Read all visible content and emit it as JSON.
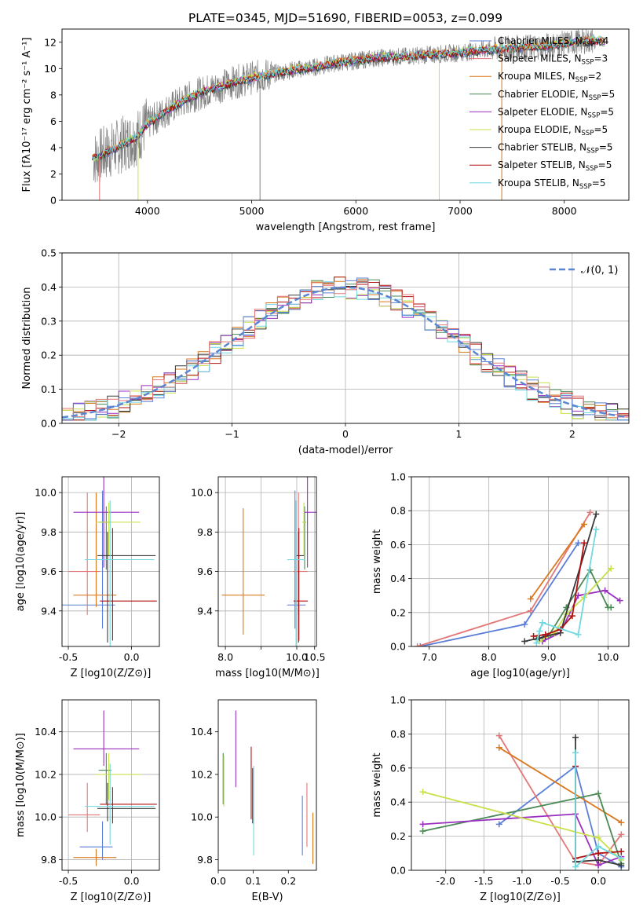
{
  "figure_title": "PLATE=0345, MJD=51690, FIBERID=0053, z=0.099",
  "colors": {
    "Chabrier MILES": "#5b7fd6",
    "Salpeter MILES": "#e37777",
    "Kroupa MILES": "#d9781f",
    "Chabrier ELODIE": "#4a8a55",
    "Salpeter ELODIE": "#9b2fbf",
    "Kroupa ELODIE": "#c9e04a",
    "Chabrier STELIB": "#3a3a3a",
    "Salpeter STELIB": "#b01010",
    "Kroupa STELIB": "#6fd8e0",
    "data": "#808080",
    "gaussian": "#5b86d1",
    "grid": "#b0b0b0"
  },
  "chart_data": [
    {
      "id": "spectrum",
      "type": "line",
      "xlabel": "wavelength [Angstrom, rest frame]",
      "ylabel": "Flux [fλ10⁻¹⁷ erg cm⁻² s⁻¹ A⁻¹]",
      "xlim": [
        3180,
        8620
      ],
      "ylim": [
        0,
        13
      ],
      "xticks": [
        4000,
        5000,
        6000,
        7000,
        8000
      ],
      "yticks": [
        0,
        2,
        4,
        6,
        8,
        10,
        12
      ],
      "grid": false,
      "legend_position": "upper right",
      "legend": [
        "Chabrier MILES, N_SSP=4",
        "Salpeter MILES, N_SSP=3",
        "Kroupa MILES, N_SSP=2",
        "Chabrier ELODIE, N_SSP=5",
        "Salpeter ELODIE, N_SSP=5",
        "Kroupa ELODIE, N_SSP=5",
        "Chabrier STELIB, N_SSP=5",
        "Salpeter STELIB, N_SSP=5",
        "Kroupa STELIB, N_SSP=5"
      ],
      "continuum": {
        "x": [
          3500,
          3700,
          3900,
          4000,
          4200,
          4400,
          4600,
          4800,
          5000,
          5200,
          5400,
          5600,
          5800,
          6000,
          6200,
          6400,
          6600,
          6800,
          7000,
          7200,
          7400,
          7600,
          7800,
          8000,
          8200
        ],
        "y": [
          3.2,
          4.0,
          4.8,
          5.8,
          6.9,
          7.8,
          8.4,
          8.9,
          9.3,
          9.6,
          9.9,
          10.1,
          10.4,
          10.6,
          10.8,
          10.9,
          11.0,
          11.1,
          11.2,
          11.4,
          11.5,
          11.6,
          11.7,
          11.9,
          12.1
        ]
      },
      "dips": [
        {
          "x": 3540,
          "y": 0.0
        },
        {
          "x": 3910,
          "y": 0.0
        },
        {
          "x": 5080,
          "y": 0.0
        },
        {
          "x": 6800,
          "y": 0.0
        },
        {
          "x": 7400,
          "y": 0.0
        }
      ]
    },
    {
      "id": "residuals",
      "type": "bar",
      "xlabel": "(data-model)/error",
      "ylabel": "Normed distribution",
      "xlim": [
        -2.5,
        2.5
      ],
      "ylim": [
        0,
        0.5
      ],
      "xticks": [
        -2,
        -1,
        0,
        1,
        2
      ],
      "yticks": [
        0.0,
        0.1,
        0.2,
        0.3,
        0.4,
        0.5
      ],
      "grid": true,
      "legend_position": "upper right",
      "legend": [
        "𝒩(0, 1)"
      ],
      "bin_width": 0.1,
      "gaussian": {
        "mu": 0,
        "sigma": 1
      }
    },
    {
      "id": "age-vs-Z",
      "type": "scatter",
      "xlabel": "Z [log10(Z/Z⊙)]",
      "ylabel": "age [log10(age/yr)]",
      "xlim": [
        -0.55,
        0.22
      ],
      "ylim": [
        9.22,
        10.08
      ],
      "xticks": [
        -0.5,
        0.0
      ],
      "yticks": [
        9.4,
        9.6,
        9.8,
        10.0
      ],
      "grid": true,
      "points": [
        {
          "model": "Chabrier MILES",
          "x": -0.23,
          "y": 9.43,
          "xerr": [
            0.4,
            0.1
          ],
          "yerr": [
            0.12,
            0.58
          ]
        },
        {
          "model": "Salpeter MILES",
          "x": -0.35,
          "y": 9.6,
          "xerr": [
            0.15,
            0.1
          ],
          "yerr": [
            0.22,
            0.4
          ]
        },
        {
          "model": "Kroupa MILES",
          "x": -0.28,
          "y": 9.48,
          "xerr": [
            0.18,
            0.16
          ],
          "yerr": [
            0.06,
            0.52
          ]
        },
        {
          "model": "Chabrier ELODIE",
          "x": -0.2,
          "y": 9.85,
          "xerr": [
            0.06,
            0.04
          ],
          "yerr": [
            0.24,
            0.08
          ]
        },
        {
          "model": "Salpeter ELODIE",
          "x": -0.22,
          "y": 9.9,
          "xerr": [
            0.24,
            0.28
          ],
          "yerr": [
            0.28,
            0.22
          ]
        },
        {
          "model": "Kroupa ELODIE",
          "x": -0.18,
          "y": 9.85,
          "xerr": [
            0.1,
            0.25
          ],
          "yerr": [
            0.17,
            0.1
          ]
        },
        {
          "model": "Chabrier STELIB",
          "x": -0.19,
          "y": 9.68,
          "xerr": [
            0.08,
            0.38
          ],
          "yerr": [
            0.44,
            0.12
          ]
        },
        {
          "model": "Salpeter STELIB",
          "x": -0.15,
          "y": 9.45,
          "xerr": [
            0.1,
            0.35
          ],
          "yerr": [
            0.2,
            0.37
          ]
        },
        {
          "model": "Kroupa STELIB",
          "x": -0.17,
          "y": 9.66,
          "xerr": [
            0.2,
            0.35
          ],
          "yerr": [
            0.46,
            0.3
          ]
        }
      ]
    },
    {
      "id": "age-vs-mass",
      "type": "scatter",
      "xlabel": "mass [log10(M/M⊙)]",
      "ylabel": "",
      "xlim": [
        7.8,
        10.55
      ],
      "ylim": [
        9.22,
        10.08
      ],
      "xticks": [
        8.0,
        9.0,
        10.0,
        10.5
      ],
      "tick_labels": [
        "8.0",
        "",
        "10.0",
        "10.5"
      ],
      "yticks": [
        9.4,
        9.6,
        9.8,
        10.0
      ],
      "grid": true,
      "points": [
        {
          "model": "Chabrier MILES",
          "x": 9.95,
          "y": 9.43,
          "xerr": [
            0.22,
            0.3
          ],
          "yerr": [
            0.12,
            0.58
          ]
        },
        {
          "model": "Salpeter MILES",
          "x": 10.05,
          "y": 9.6,
          "xerr": [
            0.15,
            0.25
          ],
          "yerr": [
            0.22,
            0.4
          ]
        },
        {
          "model": "Kroupa MILES",
          "x": 8.5,
          "y": 9.48,
          "xerr": [
            0.6,
            0.6
          ],
          "yerr": [
            0.2,
            0.44
          ]
        },
        {
          "model": "Chabrier ELODIE",
          "x": 10.22,
          "y": 9.85,
          "xerr": [
            0.04,
            0.04
          ],
          "yerr": [
            0.24,
            0.08
          ]
        },
        {
          "model": "Salpeter ELODIE",
          "x": 10.3,
          "y": 9.9,
          "xerr": [
            0.1,
            0.25
          ],
          "yerr": [
            0.28,
            0.22
          ]
        },
        {
          "model": "Kroupa ELODIE",
          "x": 10.2,
          "y": 9.85,
          "xerr": [
            0.05,
            0.05
          ],
          "yerr": [
            0.17,
            0.1
          ]
        },
        {
          "model": "Chabrier STELIB",
          "x": 10.05,
          "y": 9.68,
          "xerr": [
            0.07,
            0.15
          ],
          "yerr": [
            0.44,
            0.12
          ]
        },
        {
          "model": "Salpeter STELIB",
          "x": 10.06,
          "y": 9.45,
          "xerr": [
            0.15,
            0.25
          ],
          "yerr": [
            0.2,
            0.37
          ]
        },
        {
          "model": "Kroupa STELIB",
          "x": 9.98,
          "y": 9.66,
          "xerr": [
            0.25,
            0.25
          ],
          "yerr": [
            0.46,
            0.3
          ]
        }
      ]
    },
    {
      "id": "massweight-vs-age",
      "type": "line",
      "xlabel": "age [log10(age/yr)]",
      "ylabel": "mass weight",
      "xlim": [
        6.7,
        10.35
      ],
      "ylim": [
        0,
        1.0
      ],
      "xticks": [
        7,
        8,
        9,
        10
      ],
      "yticks": [
        0.0,
        0.2,
        0.4,
        0.6,
        0.8,
        1.0
      ],
      "grid": true,
      "series": [
        {
          "model": "Chabrier MILES",
          "x": [
            6.85,
            8.6,
            9.5
          ],
          "y": [
            0.0,
            0.13,
            0.61
          ]
        },
        {
          "model": "Salpeter MILES",
          "x": [
            6.8,
            8.7,
            9.7
          ],
          "y": [
            0.0,
            0.21,
            0.79
          ]
        },
        {
          "model": "Kroupa MILES",
          "x": [
            8.7,
            9.6
          ],
          "y": [
            0.28,
            0.72
          ]
        },
        {
          "model": "Chabrier ELODIE",
          "x": [
            8.8,
            9.0,
            9.3,
            9.7,
            10.0,
            10.05
          ],
          "y": [
            0.04,
            0.06,
            0.23,
            0.45,
            0.23,
            0.23
          ]
        },
        {
          "model": "Salpeter ELODIE",
          "x": [
            8.9,
            9.2,
            9.5,
            9.95,
            10.2
          ],
          "y": [
            0.03,
            0.08,
            0.3,
            0.33,
            0.27
          ]
        },
        {
          "model": "Kroupa ELODIE",
          "x": [
            8.85,
            9.1,
            9.3,
            9.6,
            10.05
          ],
          "y": [
            0.03,
            0.08,
            0.19,
            0.29,
            0.46
          ]
        },
        {
          "model": "Chabrier STELIB",
          "x": [
            8.6,
            8.85,
            8.95,
            9.2,
            9.8
          ],
          "y": [
            0.03,
            0.05,
            0.06,
            0.08,
            0.78
          ]
        },
        {
          "model": "Salpeter STELIB",
          "x": [
            8.75,
            8.95,
            9.2,
            9.4,
            9.6
          ],
          "y": [
            0.06,
            0.07,
            0.1,
            0.18,
            0.61
          ]
        },
        {
          "model": "Kroupa STELIB",
          "x": [
            8.8,
            8.85,
            8.9,
            9.5,
            9.8
          ],
          "y": [
            0.02,
            0.09,
            0.14,
            0.07,
            0.69
          ]
        }
      ]
    },
    {
      "id": "mass-vs-Z",
      "type": "scatter",
      "xlabel": "Z [log10(Z/Z⊙)]",
      "ylabel": "mass [log10(M/M⊙)]",
      "xlim": [
        -0.55,
        0.22
      ],
      "ylim": [
        9.75,
        10.55
      ],
      "xticks": [
        -0.5,
        0.0
      ],
      "yticks": [
        9.8,
        10.0,
        10.2,
        10.4
      ],
      "grid": true,
      "points": [
        {
          "model": "Chabrier MILES",
          "x": -0.23,
          "y": 9.86,
          "xerr": [
            0.18,
            0.08
          ],
          "yerr": [
            0.06,
            0.12
          ]
        },
        {
          "model": "Salpeter MILES",
          "x": -0.35,
          "y": 10.01,
          "xerr": [
            0.15,
            0.1
          ],
          "yerr": [
            0.08,
            0.15
          ]
        },
        {
          "model": "Kroupa MILES",
          "x": -0.28,
          "y": 9.81,
          "xerr": [
            0.18,
            0.16
          ],
          "yerr": [
            0.04,
            0.04
          ]
        },
        {
          "model": "Chabrier ELODIE",
          "x": -0.2,
          "y": 10.22,
          "xerr": [
            0.06,
            0.04
          ],
          "yerr": [
            0.16,
            0.08
          ]
        },
        {
          "model": "Salpeter ELODIE",
          "x": -0.22,
          "y": 10.32,
          "xerr": [
            0.24,
            0.28
          ],
          "yerr": [
            0.08,
            0.18
          ]
        },
        {
          "model": "Kroupa ELODIE",
          "x": -0.18,
          "y": 10.2,
          "xerr": [
            0.1,
            0.25
          ],
          "yerr": [
            0.12,
            0.1
          ]
        },
        {
          "model": "Chabrier STELIB",
          "x": -0.19,
          "y": 10.04,
          "xerr": [
            0.08,
            0.38
          ],
          "yerr": [
            0.06,
            0.12
          ]
        },
        {
          "model": "Salpeter STELIB",
          "x": -0.15,
          "y": 10.06,
          "xerr": [
            0.1,
            0.35
          ],
          "yerr": [
            0.09,
            0.08
          ]
        },
        {
          "model": "Kroupa STELIB",
          "x": -0.17,
          "y": 10.05,
          "xerr": [
            0.2,
            0.35
          ],
          "yerr": [
            0.18,
            0.2
          ]
        }
      ]
    },
    {
      "id": "mass-vs-EBV",
      "type": "scatter",
      "xlabel": "E(B-V)",
      "ylabel": "",
      "xlim": [
        0.0,
        0.28
      ],
      "ylim": [
        9.75,
        10.55
      ],
      "xticks": [
        0.0,
        0.1,
        0.2
      ],
      "yticks": [
        9.8,
        10.0,
        10.2,
        10.4
      ],
      "grid": false,
      "points": [
        {
          "model": "Chabrier MILES",
          "x": 0.24,
          "y": 9.96,
          "xerr": [
            0,
            0
          ],
          "yerr": [
            0.14,
            0.14
          ]
        },
        {
          "model": "Salpeter MILES",
          "x": 0.253,
          "y": 10.02,
          "xerr": [
            0,
            0
          ],
          "yerr": [
            0.16,
            0.14
          ]
        },
        {
          "model": "Kroupa MILES",
          "x": 0.27,
          "y": 9.9,
          "xerr": [
            0,
            0
          ],
          "yerr": [
            0.12,
            0.12
          ]
        },
        {
          "model": "Chabrier ELODIE",
          "x": 0.014,
          "y": 10.18,
          "xerr": [
            0,
            0
          ],
          "yerr": [
            0.12,
            0.12
          ]
        },
        {
          "model": "Salpeter ELODIE",
          "x": 0.05,
          "y": 10.32,
          "xerr": [
            0,
            0
          ],
          "yerr": [
            0.18,
            0.18
          ]
        },
        {
          "model": "Kroupa ELODIE",
          "x": 0.016,
          "y": 10.17,
          "xerr": [
            0,
            0
          ],
          "yerr": [
            0.12,
            0.12
          ]
        },
        {
          "model": "Chabrier STELIB",
          "x": 0.098,
          "y": 10.05,
          "xerr": [
            0,
            0
          ],
          "yerr": [
            0.08,
            0.18
          ]
        },
        {
          "model": "Salpeter STELIB",
          "x": 0.094,
          "y": 10.16,
          "xerr": [
            0,
            0
          ],
          "yerr": [
            0.17,
            0.17
          ]
        },
        {
          "model": "Kroupa STELIB",
          "x": 0.101,
          "y": 10.02,
          "xerr": [
            0,
            0
          ],
          "yerr": [
            0.2,
            0.22
          ]
        }
      ]
    },
    {
      "id": "massweight-vs-Z",
      "type": "line",
      "xlabel": "Z [log10(Z/Z⊙)]",
      "ylabel": "mass weight",
      "xlim": [
        -2.45,
        0.4
      ],
      "ylim": [
        0,
        1.0
      ],
      "xticks": [
        -2.0,
        -1.5,
        -1.0,
        -0.5,
        0.0
      ],
      "yticks": [
        0.0,
        0.2,
        0.4,
        0.6,
        0.8,
        1.0
      ],
      "grid": true,
      "series": [
        {
          "model": "Chabrier MILES",
          "x": [
            -1.3,
            -0.3,
            0.0,
            0.3
          ],
          "y": [
            0.27,
            0.61,
            0.1,
            0.02
          ]
        },
        {
          "model": "Salpeter MILES",
          "x": [
            -1.3,
            -0.3,
            0.0,
            0.3
          ],
          "y": [
            0.79,
            0.05,
            0.03,
            0.21
          ]
        },
        {
          "model": "Kroupa MILES",
          "x": [
            -1.3,
            0.3
          ],
          "y": [
            0.72,
            0.28
          ]
        },
        {
          "model": "Chabrier ELODIE",
          "x": [
            -2.3,
            0.0,
            0.3
          ],
          "y": [
            0.23,
            0.45,
            0.04
          ]
        },
        {
          "model": "Salpeter ELODIE",
          "x": [
            -2.3,
            -0.3,
            0.0,
            0.3
          ],
          "y": [
            0.27,
            0.33,
            0.03,
            0.08
          ]
        },
        {
          "model": "Kroupa ELODIE",
          "x": [
            -2.3,
            0.0,
            0.3
          ],
          "y": [
            0.46,
            0.19,
            0.06
          ]
        },
        {
          "model": "Chabrier STELIB",
          "x": [
            -0.3,
            -0.3,
            0.0,
            0.3
          ],
          "y": [
            0.78,
            0.05,
            0.06,
            0.03
          ]
        },
        {
          "model": "Salpeter STELIB",
          "x": [
            -0.3,
            -0.3,
            0.0,
            0.3
          ],
          "y": [
            0.61,
            0.07,
            0.1,
            0.11
          ]
        },
        {
          "model": "Kroupa STELIB",
          "x": [
            -0.3,
            -0.3,
            0.0,
            0.3
          ],
          "y": [
            0.69,
            0.02,
            0.14,
            0.07
          ]
        }
      ]
    }
  ]
}
